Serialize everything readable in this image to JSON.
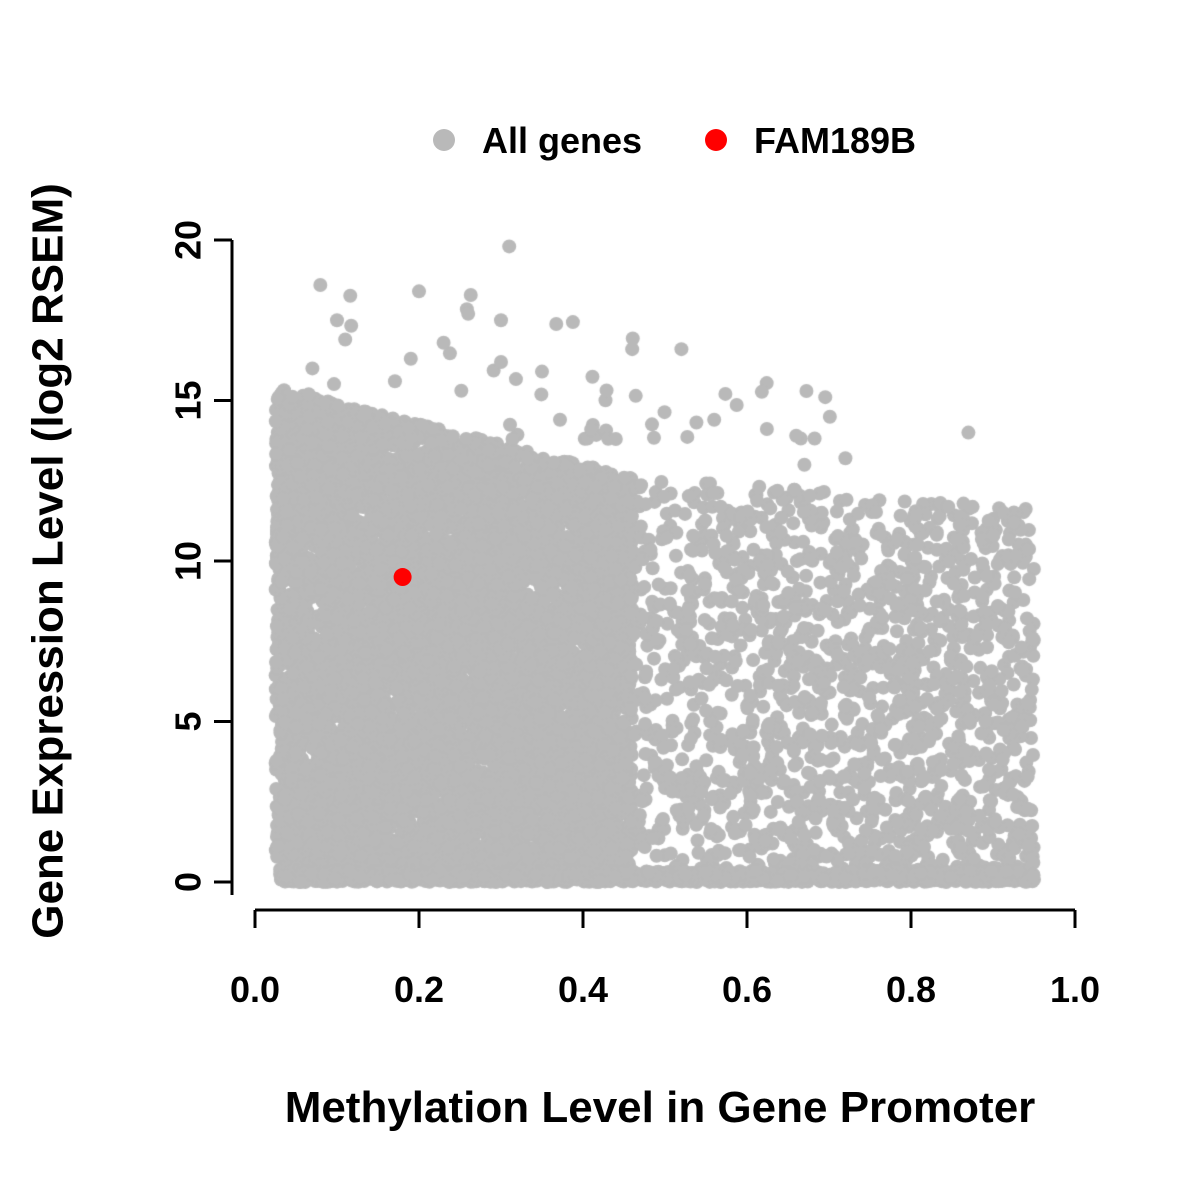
{
  "figure": {
    "background": "#ffffff",
    "text_color": "#000000"
  },
  "chart_data": {
    "type": "scatter",
    "title": "",
    "xlabel": "Methylation Level in Gene Promoter",
    "ylabel": "Gene Expression Level (log2 RSEM)",
    "xlim": [
      0.0,
      1.0
    ],
    "ylim": [
      0,
      20
    ],
    "x_ticks": [
      0.0,
      0.2,
      0.4,
      0.6,
      0.8,
      1.0
    ],
    "x_tick_labels": [
      "0.0",
      "0.2",
      "0.4",
      "0.6",
      "0.8",
      "1.0"
    ],
    "y_ticks": [
      0,
      5,
      10,
      15,
      20
    ],
    "y_tick_labels": [
      "0",
      "5",
      "10",
      "15",
      "20"
    ],
    "grid": false,
    "legend_position": "top",
    "series": [
      {
        "name": "All genes",
        "color": "#b9b9b9",
        "marker": "circle",
        "n_points_approx": 10000,
        "seed": 42,
        "clusters": [
          {
            "name": "dense-low-methylation-block",
            "n": 7000,
            "x_min": 0.025,
            "x_max": 0.46,
            "x_pow": 1.05,
            "y_min": 0,
            "edge_at_xmin": 15.4,
            "edge_at_xmax": 12.6,
            "y_pow": 1.0
          },
          {
            "name": "sparse-high-methylation-cloud",
            "n": 1800,
            "x_min": 0.4,
            "x_max": 0.95,
            "x_pow": 0.85,
            "y_min": 0,
            "edge_at_xmin": 12.8,
            "edge_at_xmax": 11.6,
            "y_pow": 1.1
          },
          {
            "name": "upper-outlier-fringe",
            "n": 55,
            "x_min": 0.05,
            "x_max": 0.72,
            "x_pow": 1.2,
            "y_min": 13.8,
            "edge_at_xmin": 20.0,
            "edge_at_xmax": 15.0,
            "y_pow": 2.2
          },
          {
            "name": "baseline-strip",
            "n": 1100,
            "x_min": 0.03,
            "x_max": 0.95,
            "x_pow": 1.15,
            "y_min": 0,
            "edge_at_xmin": 0.35,
            "edge_at_xmax": 0.35,
            "y_pow": 1.0
          }
        ],
        "extra_points": [
          [
            0.31,
            19.8
          ],
          [
            0.2,
            18.4
          ],
          [
            0.26,
            17.7
          ],
          [
            0.3,
            17.5
          ],
          [
            0.1,
            17.5
          ],
          [
            0.11,
            16.9
          ],
          [
            0.23,
            16.8
          ],
          [
            0.46,
            16.6
          ],
          [
            0.52,
            16.6
          ],
          [
            0.19,
            16.3
          ],
          [
            0.07,
            16.0
          ],
          [
            0.3,
            16.2
          ],
          [
            0.35,
            15.9
          ],
          [
            0.87,
            14.0
          ],
          [
            0.72,
            13.2
          ],
          [
            0.67,
            13.0
          ],
          [
            0.66,
            13.9
          ],
          [
            0.56,
            14.4
          ],
          [
            0.41,
            14.1
          ],
          [
            0.44,
            13.8
          ]
        ]
      },
      {
        "name": "FAM189B",
        "color": "#ff0000",
        "marker": "circle",
        "points": [
          [
            0.18,
            9.5
          ]
        ]
      }
    ]
  }
}
